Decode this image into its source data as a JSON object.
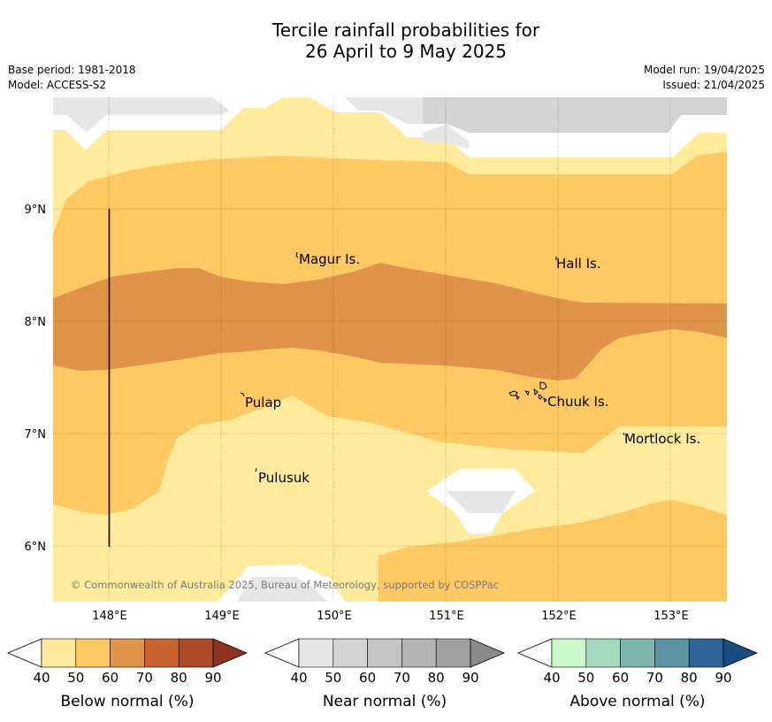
{
  "title": {
    "line1": "Tercile rainfall probabilities for",
    "line2": "26 April to 9 May 2025"
  },
  "meta": {
    "base_period": "Base period: 1981-2018",
    "model": "Model: ACCESS-S2",
    "model_run": "Model run: 19/04/2025",
    "issued": "Issued: 21/04/2025"
  },
  "map": {
    "lat_labels": [
      "9°N",
      "8°N",
      "7°N",
      "6°N"
    ],
    "lon_labels": [
      "148°E",
      "149°E",
      "150°E",
      "151°E",
      "152°E",
      "153°E"
    ],
    "places": [
      "Magur Is.",
      "Hall Is.",
      "Pulap",
      "Chuuk Is.",
      "Mortlock Is.",
      "Pulusuk"
    ],
    "copyright": "© Commonwealth of Australia 2025, Bureau of Meteorology, supported by COSPPac"
  },
  "legends": {
    "below": {
      "label": "Below normal (%)",
      "ticks": [
        "40",
        "50",
        "60",
        "70",
        "80",
        "90"
      ],
      "colors": [
        "#ffeb9b",
        "#fec962",
        "#e0944a",
        "#cb6431",
        "#ae4a2a",
        "#8e3222"
      ]
    },
    "near": {
      "label": "Near normal (%)",
      "ticks": [
        "40",
        "50",
        "60",
        "70",
        "80",
        "90"
      ],
      "colors": [
        "#e6e6e6",
        "#d4d4d4",
        "#c4c4c4",
        "#b3b3b3",
        "#a0a0a0",
        "#8a8a8a"
      ]
    },
    "above": {
      "label": "Above normal (%)",
      "ticks": [
        "40",
        "50",
        "60",
        "70",
        "80",
        "90"
      ],
      "colors": [
        "#c9f8cb",
        "#a2d8bd",
        "#7eb5ae",
        "#5d92a0",
        "#30649b",
        "#164d80"
      ]
    }
  }
}
